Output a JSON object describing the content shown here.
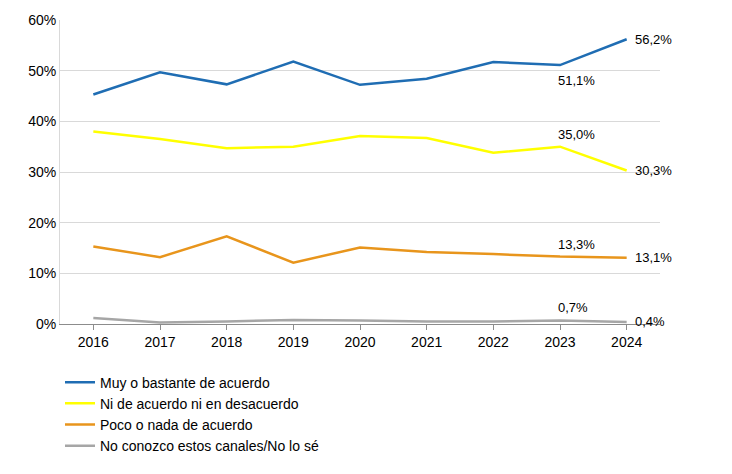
{
  "chart_data": {
    "type": "line",
    "categories": [
      "2016",
      "2017",
      "2018",
      "2019",
      "2020",
      "2021",
      "2022",
      "2023",
      "2024"
    ],
    "series": [
      {
        "name": "Muy o bastante de acuerdo",
        "color": "#1f6db3",
        "values": [
          45.3,
          49.7,
          47.3,
          51.8,
          47.2,
          48.4,
          51.7,
          51.1,
          56.2
        ]
      },
      {
        "name": "Ni de acuerdo ni en desacuerdo",
        "color": "#ffff00",
        "values": [
          38.0,
          36.5,
          34.7,
          35.0,
          37.1,
          36.7,
          33.8,
          35.0,
          30.3
        ]
      },
      {
        "name": "Poco o nada de acuerdo",
        "color": "#e8951c",
        "values": [
          15.3,
          13.2,
          17.3,
          12.1,
          15.1,
          14.2,
          13.8,
          13.3,
          13.1
        ]
      },
      {
        "name": "No conozco estos canales/No lo sé",
        "color": "#a6a6a6",
        "values": [
          1.2,
          0.3,
          0.5,
          0.8,
          0.7,
          0.5,
          0.5,
          0.7,
          0.4
        ]
      }
    ],
    "ylim": [
      0,
      60
    ],
    "yticks": [
      {
        "value": 0,
        "label": "0%"
      },
      {
        "value": 10,
        "label": "10%"
      },
      {
        "value": 20,
        "label": "20%"
      },
      {
        "value": 30,
        "label": "30%"
      },
      {
        "value": 40,
        "label": "40%"
      },
      {
        "value": 50,
        "label": "50%"
      },
      {
        "value": 60,
        "label": "60%"
      }
    ],
    "grid": true,
    "legend": "bottom",
    "annotations": [
      {
        "x": "2024",
        "y": 56.2,
        "text": "56,2%"
      },
      {
        "x": "2023",
        "y": 51.1,
        "text": "51,1%"
      },
      {
        "x": "2023",
        "y": 35.0,
        "text": "35,0%"
      },
      {
        "x": "2024",
        "y": 30.3,
        "text": "30,3%"
      },
      {
        "x": "2023",
        "y": 13.3,
        "text": "13,3%"
      },
      {
        "x": "2024",
        "y": 13.1,
        "text": "13,1%"
      },
      {
        "x": "2023",
        "y": 0.7,
        "text": "0,7%"
      },
      {
        "x": "2024",
        "y": 0.4,
        "text": "0,4%"
      }
    ]
  }
}
